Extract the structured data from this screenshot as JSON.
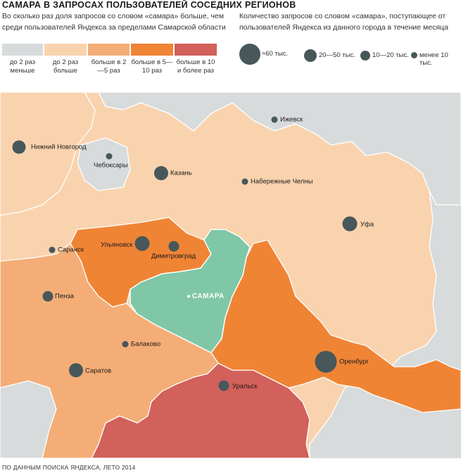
{
  "title": "САМАРА В ЗАПРОСАХ ПОЛЬЗОВАТЕЛЕЙ СОСЕДНИХ РЕГИОНОВ",
  "legend_left": {
    "description": "Во сколько раз доля запросов со словом «самара» больше, чем среди пользователей Яндекса за пределами Самарской области",
    "classes": [
      {
        "label": "до 2 раз меньше",
        "color": "#d7dbdc"
      },
      {
        "label": "до 2 раз боль­ше",
        "color": "#f9d3ae"
      },
      {
        "label": "больше в 2—5 раз",
        "color": "#f4ad76"
      },
      {
        "label": "больше в 5—10 раз",
        "color": "#f08435"
      },
      {
        "label": "больше в 10 и более раз",
        "color": "#d2605b"
      }
    ]
  },
  "legend_right": {
    "description": "Количество запросов со словом «самара», поступающее от пользователей Яндекса из данного города в течение месяца",
    "sizes": [
      {
        "label": "≈60 тыс."
      },
      {
        "label": "20—50 тыс."
      },
      {
        "label": "10—20 тыс."
      },
      {
        "label": "менее 10 тыс."
      }
    ]
  },
  "center_city": "САМАРА",
  "cities": [
    {
      "name": "Ижевск",
      "size": "менее 10 тыс."
    },
    {
      "name": "Нижний Новгород",
      "size": "20—50 тыс."
    },
    {
      "name": "Чебоксары",
      "size": "менее 10 тыс."
    },
    {
      "name": "Казань",
      "size": "20—50 тыс."
    },
    {
      "name": "Набережные Челны",
      "size": "менее 10 тыс."
    },
    {
      "name": "Уфа",
      "size": "20—50 тыс."
    },
    {
      "name": "Саранск",
      "size": "менее 10 тыс."
    },
    {
      "name": "Ульяновск",
      "size": "20—50 тыс."
    },
    {
      "name": "Димитровград",
      "size": "10—20 тыс."
    },
    {
      "name": "Пенза",
      "size": "10—20 тыс."
    },
    {
      "name": "Балаково",
      "size": "менее 10 тыс."
    },
    {
      "name": "Саратов",
      "size": "20—50 тыс."
    },
    {
      "name": "Оренбург",
      "size": "≈60 тыс."
    },
    {
      "name": "Уральск",
      "size": "10—20 тыс."
    }
  ],
  "source": "ПО ДАННЫМ ПОИСКА ЯНДЕКСА, ЛЕТО 2014"
}
